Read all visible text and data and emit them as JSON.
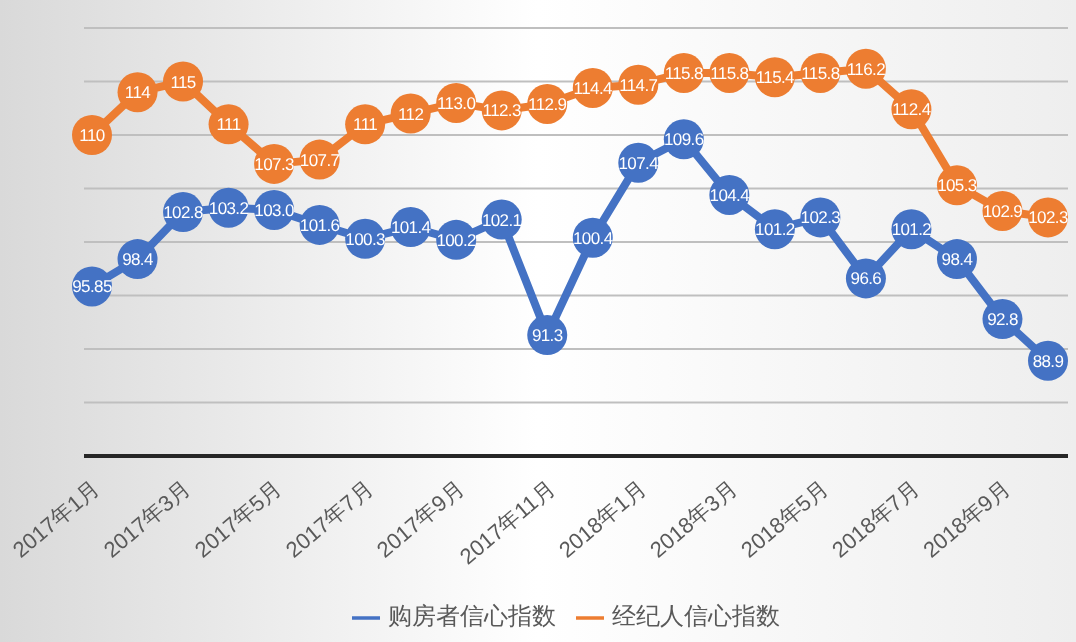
{
  "chart_data": {
    "type": "line",
    "categories": [
      "2017年1月",
      null,
      "2017年3月",
      null,
      "2017年5月",
      null,
      "2017年7月",
      null,
      "2017年9月",
      null,
      "2017年11月",
      null,
      "2018年1月",
      null,
      "2018年3月",
      null,
      "2018年5月",
      null,
      "2018年7月",
      null,
      "2018年9月",
      null
    ],
    "series": [
      {
        "name": "购房者信心指数",
        "color": "#4472c4",
        "values": [
          95.85,
          98.4,
          102.8,
          103.2,
          103.0,
          101.6,
          100.3,
          101.4,
          100.2,
          102.1,
          91.3,
          100.4,
          107.4,
          109.6,
          104.4,
          101.2,
          102.3,
          96.6,
          101.2,
          98.4,
          92.8,
          88.9
        ],
        "value_labels": [
          "95.85",
          "98.4",
          "102.8",
          "103.2",
          "103.0",
          "101.6",
          "100.3",
          "101.4",
          "100.2",
          "102.1",
          "91.3",
          "100.4",
          "107.4",
          "109.6",
          "104.4",
          "101.2",
          "102.3",
          "96.6",
          "101.2",
          "98.4",
          "92.8",
          "88.9"
        ]
      },
      {
        "name": "经纪人信心指数",
        "color": "#ed7d31",
        "values": [
          110,
          114,
          115,
          111,
          107.3,
          107.7,
          111,
          112,
          113.0,
          112.3,
          112.9,
          114.4,
          114.7,
          115.8,
          115.8,
          115.4,
          115.8,
          116.2,
          112.4,
          105.3,
          102.9,
          102.3
        ],
        "value_labels": [
          "110",
          "114",
          "115",
          "111",
          "107.3",
          "107.7",
          "111",
          "112",
          "113.0",
          "112.3",
          "112.9",
          "114.4",
          "114.7",
          "115.8",
          "115.8",
          "115.4",
          "115.8",
          "116.2",
          "112.4",
          "105.3",
          "102.9",
          "102.3"
        ]
      }
    ],
    "ylim": [
      80,
      120
    ],
    "tick_labels": "x",
    "grid": "y",
    "legend": "bottom",
    "marker": "circle",
    "line_style": "solid"
  }
}
